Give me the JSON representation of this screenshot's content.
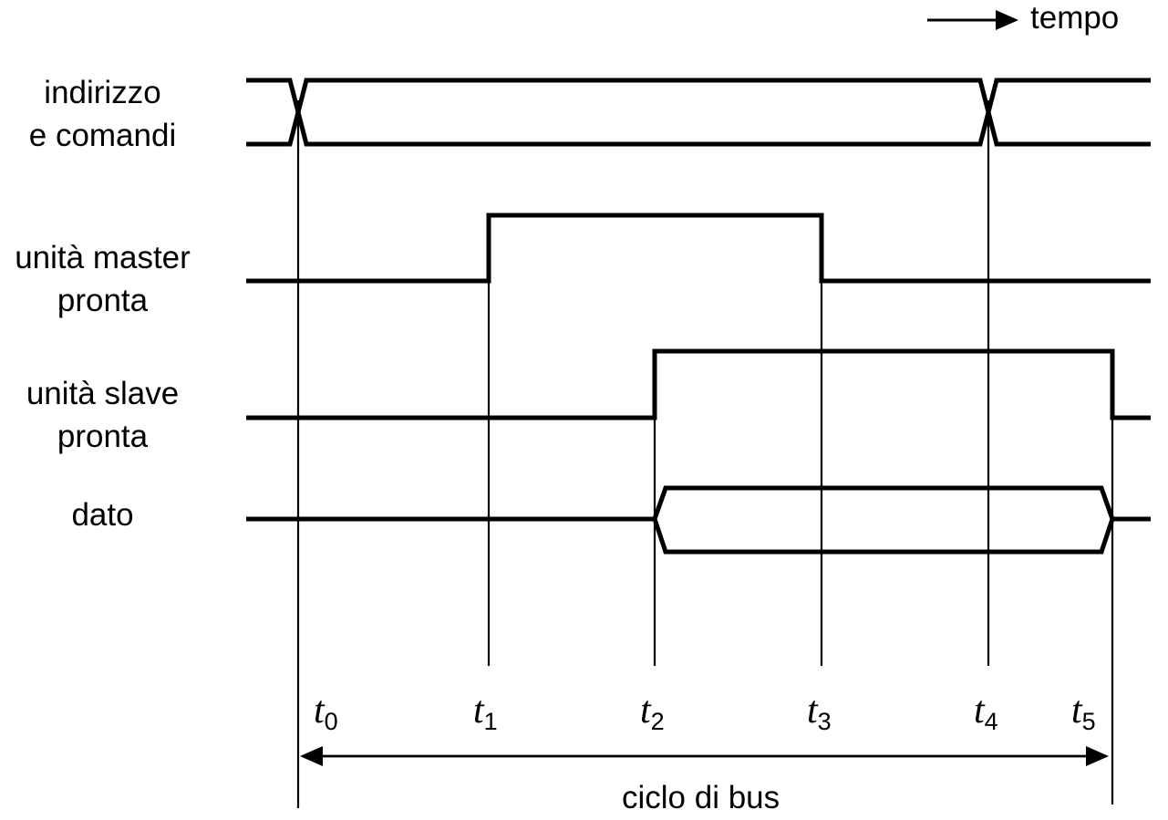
{
  "time_axis": {
    "label": "tempo"
  },
  "signals": [
    {
      "id": "addr",
      "label_lines": [
        "indirizzo",
        "e comandi"
      ]
    },
    {
      "id": "master",
      "label_lines": [
        "unità master",
        "pronta"
      ]
    },
    {
      "id": "slave",
      "label_lines": [
        "unità slave",
        "pronta"
      ]
    },
    {
      "id": "data",
      "label_lines": [
        "dato"
      ]
    }
  ],
  "time_markers": [
    {
      "symbol": "t",
      "index": "0"
    },
    {
      "symbol": "t",
      "index": "1"
    },
    {
      "symbol": "t",
      "index": "2"
    },
    {
      "symbol": "t",
      "index": "3"
    },
    {
      "symbol": "t",
      "index": "4"
    },
    {
      "symbol": "t",
      "index": "5"
    }
  ],
  "bus_cycle": {
    "label": "ciclo di bus",
    "from_marker": "0",
    "to_marker": "5"
  }
}
